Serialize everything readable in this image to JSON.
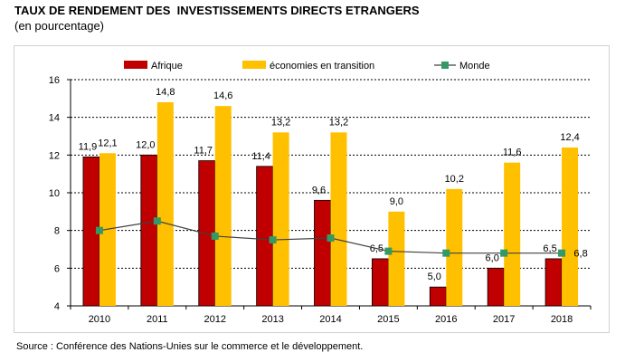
{
  "header": {
    "title": "TAUX DE RENDEMENT DES  INVESTISSEMENTS DIRECTS ETRANGERS",
    "subtitle": "(en pourcentage)"
  },
  "footer": {
    "source": "Source : Conférence des Nations-Unies sur le commerce et le développement."
  },
  "colors": {
    "afrique": "#c00000",
    "transition": "#ffc000",
    "monde_line": "#404040",
    "monde_marker": "#339966",
    "grid": "#000000"
  },
  "chart_data": {
    "type": "bar",
    "categories": [
      "2010",
      "2011",
      "2012",
      "2013",
      "2014",
      "2015",
      "2016",
      "2017",
      "2018"
    ],
    "series": [
      {
        "name": "Afrique",
        "kind": "bar",
        "values": [
          11.9,
          12.0,
          11.7,
          11.4,
          9.6,
          6.5,
          5.0,
          6.0,
          6.5
        ],
        "labels": [
          "11,9",
          "12,0",
          "11,7",
          "11,4",
          "9,6",
          "6,5",
          "5,0",
          "6,0",
          "6,5"
        ]
      },
      {
        "name": "économies en transition",
        "kind": "bar",
        "values": [
          12.1,
          14.8,
          14.6,
          13.2,
          13.2,
          9.0,
          10.2,
          11.6,
          12.4
        ],
        "labels": [
          "12,1",
          "14,8",
          "14,6",
          "13,2",
          "13,2",
          "9,0",
          "10,2",
          "11,6",
          "12,4"
        ]
      },
      {
        "name": "Monde",
        "kind": "line",
        "values": [
          8.0,
          8.5,
          7.7,
          7.5,
          7.6,
          6.9,
          6.8,
          6.8,
          6.8
        ],
        "labels": [
          "",
          "",
          "",
          "",
          "",
          "",
          "",
          "",
          "6,8"
        ]
      }
    ],
    "yticks": [
      "4",
      "6",
      "8",
      "10",
      "12",
      "14",
      "16"
    ],
    "ylim": [
      4,
      16
    ],
    "grid": true,
    "legend_position": "top"
  }
}
